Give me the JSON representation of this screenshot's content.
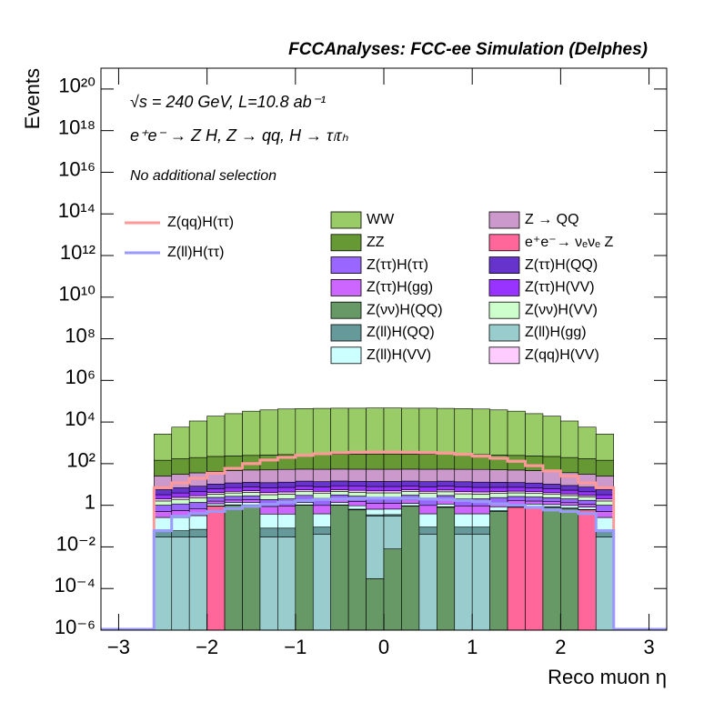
{
  "chart_data": {
    "type": "stacked_histogram",
    "title": "FCCAnalyses: FCC-ee Simulation (Delphes)",
    "annotations": [
      "√s = 240 GeV, L=10.8 ab⁻¹",
      "e⁺e⁻ → Z H, Z → qq, H → τₗτₕ",
      "No additional selection"
    ],
    "x_label": "Reco muon η",
    "y_label": "Events",
    "log_y": true,
    "xlim": [
      -3.2,
      3.2
    ],
    "ylim": [
      1e-06,
      1e+21
    ],
    "xticks": [
      {
        "value": -3,
        "label": "−3"
      },
      {
        "value": -2,
        "label": "−2"
      },
      {
        "value": -1,
        "label": "−1"
      },
      0,
      1,
      2,
      3
    ],
    "yticks": [
      {
        "value": 1e-06,
        "label": "10⁻⁶"
      },
      {
        "value": 0.0001,
        "label": "10⁻⁴"
      },
      {
        "value": 0.01,
        "label": "10⁻²"
      },
      1,
      {
        "value": 100,
        "label": "10²"
      },
      {
        "value": 10000,
        "label": "10⁴"
      },
      {
        "value": 1000000.0,
        "label": "10⁶"
      },
      {
        "value": 100000000.0,
        "label": "10⁸"
      },
      {
        "value": 10000000000.0,
        "label": "10¹⁰"
      },
      {
        "value": 1000000000000.0,
        "label": "10¹²"
      },
      {
        "value": 100000000000000.0,
        "label": "10¹⁴"
      },
      {
        "value": 1e+16,
        "label": "10¹⁶"
      },
      {
        "value": 1e+18,
        "label": "10¹⁸"
      },
      {
        "value": 1e+20,
        "label": "10²⁰"
      }
    ],
    "bins": [
      -2.6,
      -2.4,
      -2.2,
      -2.0,
      -1.8,
      -1.6,
      -1.4,
      -1.2,
      -1.0,
      -0.8,
      -0.6,
      -0.4,
      -0.2,
      0.0,
      0.2,
      0.4,
      0.6,
      0.8,
      1.0,
      1.2,
      1.4,
      1.6,
      1.8,
      2.0,
      2.2,
      2.4,
      2.6
    ],
    "series": [
      {
        "name": "Z(νν)H(QQ)",
        "color": "#669966",
        "values": [
          0,
          0,
          0,
          0,
          1,
          1,
          0,
          0,
          1,
          0,
          1,
          0.6,
          0.0003,
          0.008,
          0.9,
          0,
          0.8,
          0,
          0,
          0.5,
          0,
          0,
          0.8,
          0.7,
          0,
          0
        ]
      },
      {
        "name": "e⁺e⁻→ νₑνₑ Z",
        "color": "#ff6699",
        "values": [
          0,
          0,
          0,
          0.9,
          0,
          0,
          0,
          0,
          0,
          0,
          0,
          0,
          0,
          0,
          0,
          0,
          0,
          0,
          0,
          0,
          0.8,
          0.8,
          0,
          0,
          0.6,
          0
        ]
      },
      {
        "name": "Z(ll)H(gg)",
        "color": "#99cccc",
        "values": [
          0.03,
          0.03,
          0.03,
          0,
          0,
          0,
          0.03,
          0.03,
          0,
          0.04,
          0,
          0,
          0.3,
          0.3,
          0,
          0.04,
          0,
          0.04,
          0.04,
          0,
          0,
          0,
          0,
          0,
          0,
          0.03
        ]
      },
      {
        "name": "Z(ll)H(QQ)",
        "color": "#669999",
        "values": [
          0.03,
          0.03,
          0.04,
          0.04,
          0.05,
          0.05,
          0.05,
          0.05,
          0.05,
          0.05,
          0.05,
          0.05,
          0.05,
          0.05,
          0.05,
          0.05,
          0.05,
          0.05,
          0.05,
          0.05,
          0.05,
          0.05,
          0.04,
          0.04,
          0.03,
          0.03
        ]
      },
      {
        "name": "Z(ll)H(VV)",
        "color": "#ccffff",
        "values": [
          0.2,
          0.2,
          0.25,
          0.25,
          0.3,
          0.3,
          0.3,
          0.3,
          0.3,
          0.3,
          0.3,
          0.3,
          0.3,
          0.3,
          0.3,
          0.3,
          0.3,
          0.3,
          0.3,
          0.3,
          0.3,
          0.3,
          0.25,
          0.25,
          0.2,
          0.2
        ]
      },
      {
        "name": "Z(ττ)H(gg)",
        "color": "#cc66ff",
        "values": [
          0.25,
          0.3,
          0.35,
          0.4,
          0.45,
          0.5,
          0.5,
          0.55,
          0.55,
          0.6,
          0.6,
          0.6,
          0.6,
          0.6,
          0.6,
          0.6,
          0.6,
          0.55,
          0.55,
          0.5,
          0.5,
          0.45,
          0.4,
          0.35,
          0.3,
          0.25
        ]
      },
      {
        "name": "Z(ττ)H(ττ)",
        "color": "#9966ff",
        "values": [
          0.5,
          0.6,
          0.7,
          0.8,
          0.9,
          1,
          1,
          1.1,
          1.1,
          1.2,
          1.2,
          1.2,
          1.2,
          1.2,
          1.2,
          1.2,
          1.2,
          1.1,
          1.1,
          1,
          1,
          0.9,
          0.8,
          0.7,
          0.6,
          0.5
        ]
      },
      {
        "name": "Z(νν)H(VV)",
        "color": "#ccffcc",
        "values": [
          0.6,
          0.75,
          0.9,
          1.05,
          1.2,
          1.3,
          1.35,
          1.4,
          1.5,
          1.5,
          1.5,
          1.5,
          1.5,
          1.5,
          1.5,
          1.5,
          1.5,
          1.5,
          1.4,
          1.35,
          1.3,
          1.2,
          1.05,
          0.9,
          0.75,
          0.6
        ]
      },
      {
        "name": "Z(qq)H(VV)",
        "color": "#ffccff",
        "values": [
          0.4,
          0.5,
          0.6,
          0.7,
          0.8,
          0.85,
          0.9,
          0.95,
          1,
          1,
          1,
          1,
          1,
          1,
          1,
          1,
          1,
          1,
          0.95,
          0.9,
          0.85,
          0.8,
          0.7,
          0.6,
          0.5,
          0.4
        ]
      },
      {
        "name": "Z(ττ)H(VV)",
        "color": "#9933ff",
        "values": [
          1.2,
          1.5,
          1.8,
          2.1,
          2.4,
          2.55,
          2.7,
          2.85,
          3,
          3,
          3,
          3,
          3,
          3,
          3,
          3,
          3,
          3,
          2.85,
          2.7,
          2.55,
          2.4,
          2.1,
          1.8,
          1.5,
          1.2
        ]
      },
      {
        "name": "Z(ττ)H(QQ)",
        "color": "#6633cc",
        "values": [
          2.4,
          3,
          3.6,
          4.2,
          4.8,
          5.1,
          5.4,
          5.7,
          6,
          6,
          6,
          6,
          6,
          6,
          6,
          6,
          6,
          6,
          5.7,
          5.4,
          5.1,
          4.8,
          4.2,
          3.6,
          3,
          2.4
        ]
      },
      {
        "name": "Z → QQ",
        "color": "#cc99cc",
        "values": [
          20,
          24,
          28,
          32,
          35,
          37,
          38,
          40,
          40,
          40,
          40,
          40,
          40,
          40,
          40,
          40,
          40,
          40,
          40,
          38,
          37,
          35,
          32,
          28,
          24,
          20
        ]
      },
      {
        "name": "ZZ",
        "color": "#669933",
        "values": [
          120,
          140,
          160,
          180,
          190,
          200,
          210,
          220,
          220,
          230,
          230,
          230,
          230,
          230,
          230,
          230,
          230,
          220,
          220,
          210,
          200,
          190,
          180,
          160,
          140,
          120
        ]
      },
      {
        "name": "WW",
        "color": "#99cc66",
        "values": [
          2500,
          5500,
          11000,
          19000,
          25000,
          33000,
          38000,
          42000,
          44000,
          45000,
          46000,
          46000,
          47000,
          47000,
          46000,
          46000,
          45000,
          44000,
          42000,
          38000,
          33000,
          25000,
          19000,
          11000,
          5500,
          2500
        ]
      }
    ],
    "line_series": [
      {
        "name": "Z(qq)H(ττ)",
        "color": "#ff9999",
        "values": [
          7,
          12,
          20,
          35,
          60,
          100,
          150,
          200,
          250,
          300,
          330,
          350,
          360,
          360,
          350,
          340,
          320,
          280,
          230,
          180,
          130,
          80,
          45,
          25,
          12,
          7
        ]
      },
      {
        "name": "Z(ll)H(ττ)",
        "color": "#9999ff",
        "values": [
          0.06,
          0.3,
          0.4,
          0.5,
          0.7,
          0.9,
          1.1,
          1.4,
          1.7,
          1.9,
          2,
          2.1,
          2.2,
          2.2,
          2.1,
          2,
          1.9,
          1.7,
          1.5,
          1.2,
          1,
          0.8,
          0.6,
          0.5,
          0.4,
          0.06
        ]
      }
    ]
  }
}
